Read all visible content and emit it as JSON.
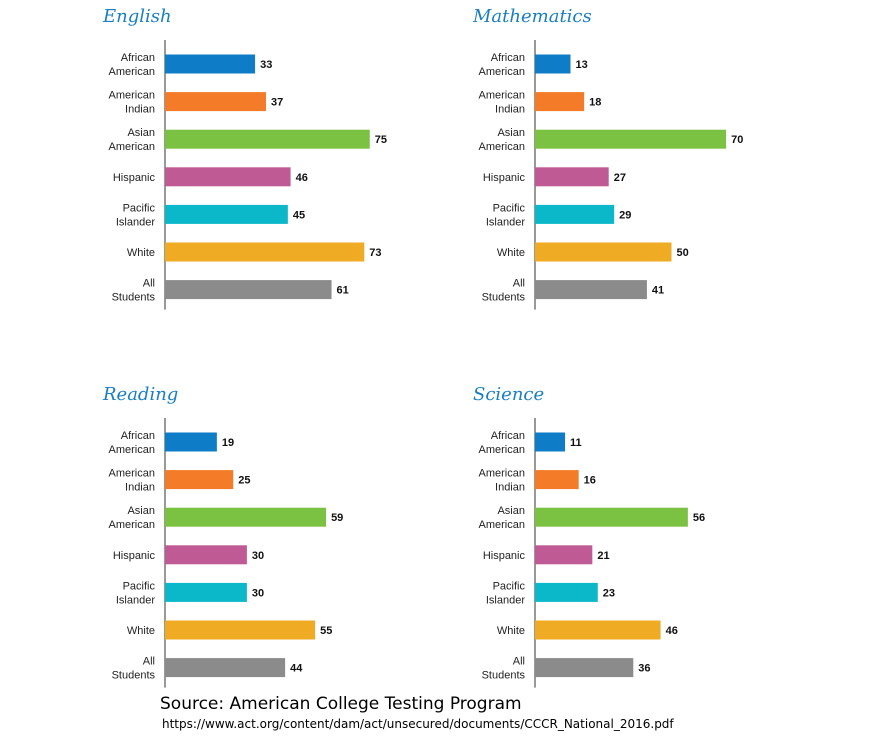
{
  "colors": [
    "#0e7cc6",
    "#f47b27",
    "#7cc242",
    "#c05a95",
    "#0bb8c9",
    "#efab23",
    "#8b8b8b"
  ],
  "source_text": "Source: American College Testing Program",
  "url_text": "https://www.act.org/content/dam/act/unsecured/documents/CCCR_National_2016.pdf",
  "chart_data": [
    {
      "type": "bar",
      "title": "English",
      "categories": [
        [
          "African",
          "American"
        ],
        [
          "American",
          "Indian"
        ],
        [
          "Asian",
          "American"
        ],
        [
          "Hispanic"
        ],
        [
          "Pacific",
          "Islander"
        ],
        [
          "White"
        ],
        [
          "All",
          "Students"
        ]
      ],
      "values": [
        33,
        37,
        75,
        46,
        45,
        73,
        61
      ]
    },
    {
      "type": "bar",
      "title": "Mathematics",
      "categories": [
        [
          "African",
          "American"
        ],
        [
          "American",
          "Indian"
        ],
        [
          "Asian",
          "American"
        ],
        [
          "Hispanic"
        ],
        [
          "Pacific",
          "Islander"
        ],
        [
          "White"
        ],
        [
          "All",
          "Students"
        ]
      ],
      "values": [
        13,
        18,
        70,
        27,
        29,
        50,
        41
      ]
    },
    {
      "type": "bar",
      "title": "Reading",
      "categories": [
        [
          "African",
          "American"
        ],
        [
          "American",
          "Indian"
        ],
        [
          "Asian",
          "American"
        ],
        [
          "Hispanic"
        ],
        [
          "Pacific",
          "Islander"
        ],
        [
          "White"
        ],
        [
          "All",
          "Students"
        ]
      ],
      "values": [
        19,
        25,
        59,
        30,
        30,
        55,
        44
      ]
    },
    {
      "type": "bar",
      "title": "Science",
      "categories": [
        [
          "African",
          "American"
        ],
        [
          "American",
          "Indian"
        ],
        [
          "Asian",
          "American"
        ],
        [
          "Hispanic"
        ],
        [
          "Pacific",
          "Islander"
        ],
        [
          "White"
        ],
        [
          "All",
          "Students"
        ]
      ],
      "values": [
        11,
        16,
        56,
        21,
        23,
        46,
        36
      ]
    }
  ]
}
